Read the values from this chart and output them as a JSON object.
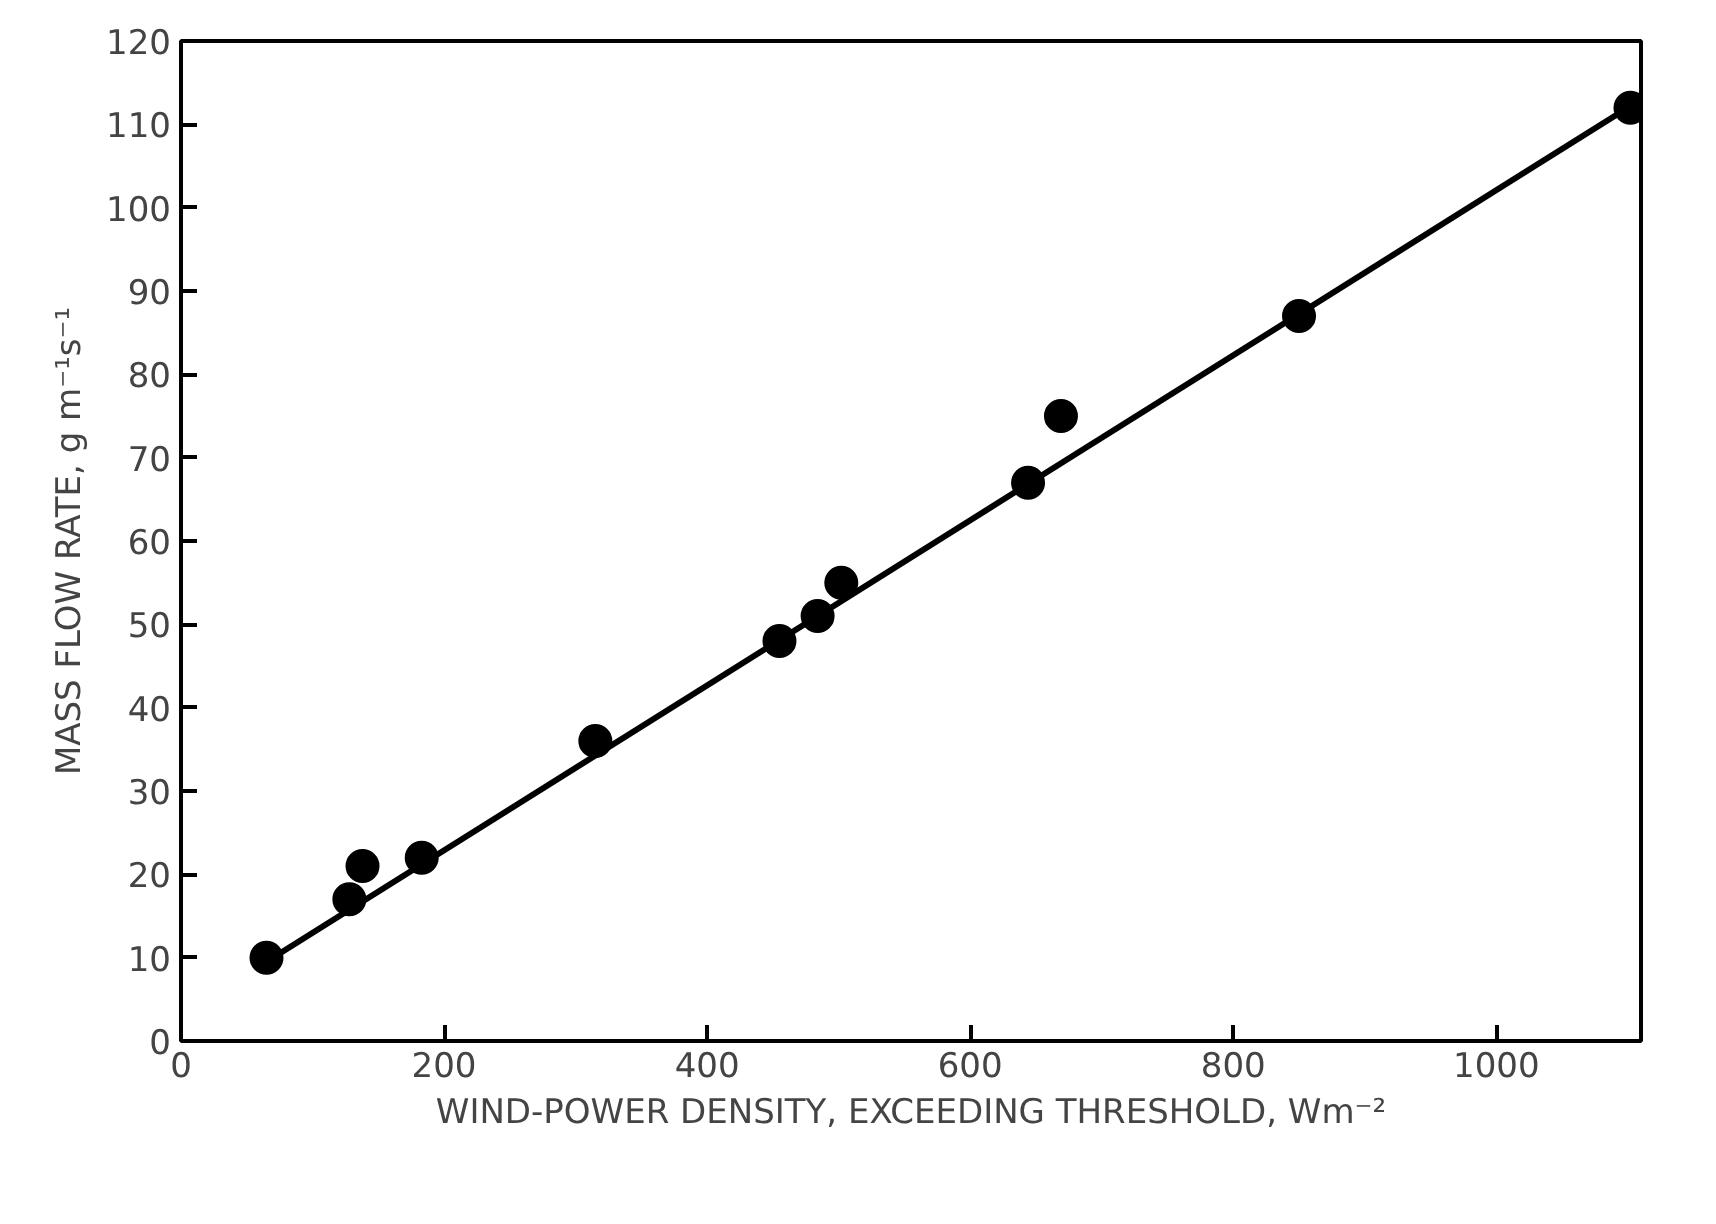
{
  "chart_data": {
    "type": "scatter",
    "xlabel": "WIND-POWER DENSITY, EXCEEDING THRESHOLD, Wm⁻²",
    "ylabel": "MASS FLOW RATE, g m⁻¹s⁻¹",
    "xlim": [
      0,
      1110
    ],
    "ylim": [
      0,
      120
    ],
    "xticks": [
      0,
      200,
      400,
      600,
      800,
      1000
    ],
    "yticks": [
      0,
      10,
      20,
      30,
      40,
      50,
      60,
      70,
      80,
      90,
      100,
      110,
      120
    ],
    "grid": false,
    "series": [
      {
        "marker": "circle",
        "color": "#000000",
        "x": [
          65,
          128,
          138,
          183,
          315,
          455,
          484,
          502,
          644,
          669,
          850,
          1102
        ],
        "values": [
          10,
          17,
          21,
          22,
          36,
          48,
          51,
          55,
          67,
          75,
          87,
          112
        ]
      },
      {
        "type": "line",
        "marker": "none",
        "color": "#000000",
        "line_style": "solid",
        "x": [
          65,
          1100
        ],
        "values": [
          9.5,
          112
        ]
      }
    ]
  }
}
